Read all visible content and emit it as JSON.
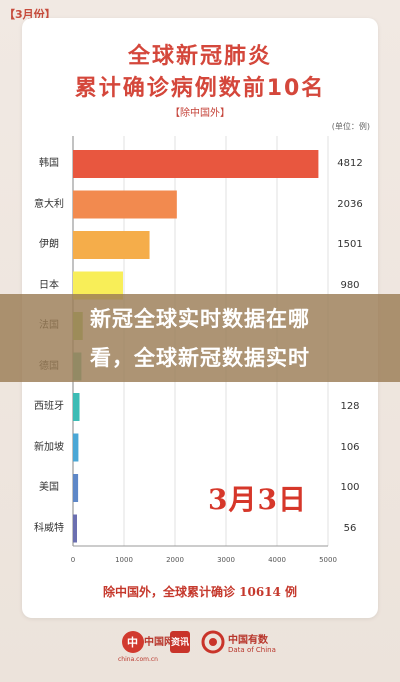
{
  "corner_tag": "【3月份】",
  "header": {
    "title_line1": "全球新冠肺炎",
    "title_line2": "累计确诊病例数前10名",
    "subtitle": "【除中国外】",
    "unit": "(单位：例)"
  },
  "stamp": {
    "date": "3月3日"
  },
  "summary_text": "除中国外，全球累计确诊 10614 例",
  "banner": {
    "line1": "新冠全球实时数据在哪",
    "line2": "看，全球新冠数据实时"
  },
  "footer": {
    "logo1_text": "中国网",
    "logo1_sub": "china.com.cn",
    "logo2_text": "资讯",
    "logo3_text": "中国有数",
    "logo3_sub": "Data of China"
  },
  "chart_data": {
    "type": "bar",
    "orientation": "horizontal",
    "categories": [
      "韩国",
      "意大利",
      "伊朗",
      "日本",
      "法国",
      "德国",
      "西班牙",
      "新加坡",
      "美国",
      "科威特"
    ],
    "values": [
      4812,
      2036,
      1501,
      980,
      191,
      165,
      128,
      106,
      100,
      56
    ],
    "value_labels": [
      "4812",
      "2036",
      "1501",
      "980",
      "",
      "",
      "128",
      "106",
      "100",
      "56"
    ],
    "bar_colors": [
      "#e8573f",
      "#f28a4f",
      "#f5ad4a",
      "#f8ee58",
      "#a8d06a",
      "#6fc5a5",
      "#3cbcb5",
      "#4aa7d6",
      "#5e87c7",
      "#6b6fb0"
    ],
    "xlim": [
      0,
      5000
    ],
    "xticks": [
      0,
      1000,
      2000,
      3000,
      4000,
      5000
    ],
    "grid": true,
    "ylabel": "",
    "xlabel": ""
  }
}
